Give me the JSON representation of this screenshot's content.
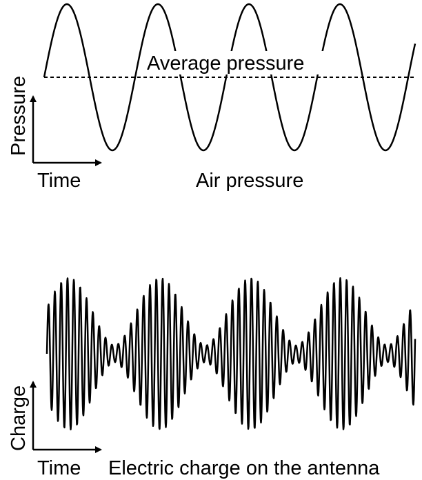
{
  "top": {
    "reference_line_label": "Average pressure",
    "y_axis_label": "Pressure",
    "x_axis_label": "Time",
    "caption": "Air pressure"
  },
  "bottom": {
    "y_axis_label": "Charge",
    "x_axis_label": "Time",
    "caption": "Electric charge on the antenna"
  },
  "colors": {
    "line": "#000000",
    "background": "#ffffff"
  }
}
